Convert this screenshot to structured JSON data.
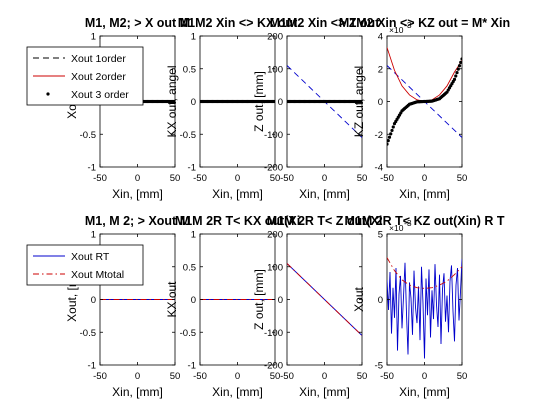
{
  "chart_data": [
    {
      "type": "line",
      "title": "M1, M2;  > X out M",
      "xlabel": "Xin, [mm]",
      "ylabel": "Xout, [",
      "xlim": [
        -50,
        50
      ],
      "ylim": [
        -1,
        1
      ],
      "xticks": [
        -50,
        0,
        50
      ],
      "yticks": [
        -1,
        -0.5,
        0,
        0.5,
        1
      ],
      "ytick_labels": [
        "-1",
        "-0.5",
        "0",
        "0.5",
        "1"
      ],
      "grid": false,
      "legend": {
        "placement": "top-left",
        "entries": [
          "Xout 1order",
          "Xout 2order",
          "Xout 3 order"
        ]
      },
      "series": [
        {
          "name": "Xout 1order",
          "style": "dashed",
          "color": "#000000",
          "x": [
            -50,
            50
          ],
          "y": [
            0,
            0
          ]
        },
        {
          "name": "Xout 2order",
          "style": "solid",
          "color": "#cc0000",
          "x": [
            -50,
            50
          ],
          "y": [
            0,
            0
          ]
        },
        {
          "name": "Xout 3 order",
          "style": "dots",
          "color": "#000000",
          "x": [
            -50,
            50
          ],
          "y": [
            0,
            0
          ]
        }
      ]
    },
    {
      "type": "line",
      "title": "M1M2 Xin <> KX  out",
      "xlabel": "Xin, [mm]",
      "ylabel": "KX out, angel",
      "xlim": [
        -50,
        50
      ],
      "ylim": [
        -1,
        1
      ],
      "xticks": [
        -50,
        0,
        50
      ],
      "yticks": [
        -1,
        -0.5,
        0,
        0.5,
        1
      ],
      "ytick_labels": [
        "-1",
        "-0.5",
        "0",
        "0.5",
        "1"
      ],
      "grid": false,
      "series": [
        {
          "style": "dashed",
          "color": "#000000",
          "x": [
            -50,
            50
          ],
          "y": [
            0,
            0
          ]
        },
        {
          "style": "solid",
          "color": "#cc0000",
          "x": [
            -50,
            50
          ],
          "y": [
            0,
            0
          ]
        },
        {
          "style": "dots",
          "color": "#000000",
          "x": [
            -50,
            50
          ],
          "y": [
            0,
            0
          ]
        }
      ]
    },
    {
      "type": "line",
      "title": "M1M2 Xin <> Z  out",
      "xlabel": "Xin, [mm]",
      "ylabel": "Z out, [mm]",
      "xlim": [
        -50,
        50
      ],
      "ylim": [
        -200,
        200
      ],
      "xticks": [
        -50,
        0,
        50
      ],
      "yticks": [
        -200,
        -100,
        0,
        100,
        200
      ],
      "ytick_labels": [
        "-200",
        "-100",
        "0",
        "100",
        "200"
      ],
      "grid": false,
      "series": [
        {
          "style": "dashed",
          "color": "#0000cc",
          "x": [
            -50,
            50
          ],
          "y": [
            110,
            -110
          ]
        },
        {
          "style": "solid",
          "color": "#cc0000",
          "x": [
            -50,
            50
          ],
          "y": [
            0,
            0
          ]
        },
        {
          "style": "dots",
          "color": "#000000",
          "x": [
            -50,
            50
          ],
          "y": [
            0,
            0
          ]
        }
      ]
    },
    {
      "type": "line",
      "title": "M1M2 Xin <> KZ out = M* Xin",
      "xlabel": "Xin, [mm]",
      "ylabel": "KZ out, angel",
      "xlim": [
        -50,
        50
      ],
      "ylim": [
        -4,
        4
      ],
      "xticks": [
        -50,
        0,
        50
      ],
      "yticks": [
        -4,
        -2,
        0,
        2,
        4
      ],
      "ytick_labels": [
        "-4",
        "-2",
        "0",
        "2",
        "4"
      ],
      "y_multiplier": "×10",
      "y_exponent": "-3",
      "grid": false,
      "series": [
        {
          "style": "dashed",
          "color": "#0000cc",
          "x": [
            -50,
            50
          ],
          "y": [
            2.2,
            -2.2
          ]
        },
        {
          "style": "solid",
          "color": "#cc0000",
          "x": [
            -50,
            -40,
            -30,
            -20,
            -10,
            0,
            10,
            20,
            30,
            40,
            50
          ],
          "y": [
            3.3,
            1.9,
            0.95,
            0.4,
            0.1,
            0.0,
            0.1,
            0.4,
            0.95,
            1.8,
            2.5
          ]
        },
        {
          "style": "dots",
          "color": "#000000",
          "x": [
            -50,
            -40,
            -30,
            -20,
            -10,
            0,
            10,
            20,
            30,
            40,
            50
          ],
          "y": [
            -2.6,
            -1.35,
            -0.57,
            -0.17,
            -0.02,
            0.0,
            0.02,
            0.17,
            0.57,
            1.35,
            2.6
          ]
        }
      ]
    },
    {
      "type": "line",
      "title": "M1, M 2;  > Xout M",
      "xlabel": "Xin, [mm]",
      "ylabel": "Xout, [m",
      "xlim": [
        -50,
        50
      ],
      "ylim": [
        -1,
        1
      ],
      "xticks": [
        -50,
        0,
        50
      ],
      "yticks": [
        -1,
        -0.5,
        0,
        0.5,
        1
      ],
      "ytick_labels": [
        "-1",
        "-0.5",
        "0",
        "0.5",
        "1"
      ],
      "grid": false,
      "legend": {
        "placement": "top-left",
        "entries": [
          "Xout RT",
          "Xout  Mtotal"
        ]
      },
      "series": [
        {
          "name": "Xout RT",
          "style": "solid",
          "color": "#0000cc",
          "x": [
            -50,
            50
          ],
          "y": [
            0,
            0
          ]
        },
        {
          "name": "Xout  Mtotal",
          "style": "dashdot",
          "color": "#cc0000",
          "x": [
            -50,
            50
          ],
          "y": [
            0,
            0
          ]
        }
      ]
    },
    {
      "type": "line",
      "title": "M1M 2R T< KX out(Xi",
      "xlabel": "Xin, [mm]",
      "ylabel": "KX out",
      "xlim": [
        -50,
        50
      ],
      "ylim": [
        -1,
        1
      ],
      "xticks": [
        -50,
        0,
        50
      ],
      "yticks": [
        -1,
        -0.5,
        0,
        0.5,
        1
      ],
      "ytick_labels": [
        "-1",
        "-0.5",
        "0",
        "0.5",
        "1"
      ],
      "grid": false,
      "series": [
        {
          "style": "solid",
          "color": "#0000cc",
          "x": [
            -50,
            50
          ],
          "y": [
            0,
            0
          ]
        },
        {
          "style": "dashdot",
          "color": "#cc0000",
          "x": [
            -50,
            50
          ],
          "y": [
            0,
            0
          ]
        }
      ]
    },
    {
      "type": "line",
      "title": "M1M 2R T< Z out(Xi",
      "xlabel": "Xin, [mm]",
      "ylabel": "Z out, [mm]",
      "xlim": [
        -50,
        50
      ],
      "ylim": [
        -200,
        200
      ],
      "xticks": [
        -50,
        0,
        50
      ],
      "yticks": [
        -200,
        -100,
        0,
        100,
        200
      ],
      "ytick_labels": [
        "-200",
        "-100",
        "0",
        "100",
        "200"
      ],
      "grid": false,
      "series": [
        {
          "style": "solid",
          "color": "#0000cc",
          "x": [
            -50,
            50
          ],
          "y": [
            110,
            -110
          ]
        },
        {
          "style": "dashdot",
          "color": "#cc0000",
          "x": [
            -50,
            50
          ],
          "y": [
            110,
            -110
          ]
        }
      ]
    },
    {
      "type": "line",
      "title": "M1M 2R T< KZ out(Xin)   R T",
      "xlabel": "Xin, [mm]",
      "ylabel": "Xout",
      "xlim": [
        -50,
        50
      ],
      "ylim": [
        -5,
        5
      ],
      "xticks": [
        -50,
        0,
        50
      ],
      "yticks": [
        -5,
        0,
        5
      ],
      "ytick_labels": [
        "-5",
        "0",
        "5"
      ],
      "y_multiplier": "×10",
      "y_exponent": "-3",
      "grid": false,
      "series": [
        {
          "style": "solid",
          "color": "#0000cc",
          "x": [
            -50,
            -48,
            -46,
            -44,
            -42,
            -40,
            -38,
            -36,
            -34,
            -32,
            -30,
            -28,
            -26,
            -24,
            -22,
            -20,
            -18,
            -16,
            -14,
            -12,
            -10,
            -8,
            -6,
            -4,
            -2,
            0,
            2,
            4,
            6,
            8,
            10,
            12,
            14,
            16,
            18,
            20,
            22,
            24,
            26,
            28,
            30,
            32,
            34,
            36,
            38,
            40,
            42,
            44,
            46,
            48,
            50
          ],
          "y": [
            1.5,
            -0.8,
            2.1,
            -2.6,
            0.9,
            -1.4,
            2.4,
            -3.9,
            0.4,
            1.8,
            -2.2,
            0.2,
            2.8,
            -1.1,
            -4.2,
            1.3,
            0.1,
            -2.7,
            2.2,
            -0.6,
            -1.8,
            1.0,
            -3.1,
            2.5,
            -0.3,
            -4.5,
            1.6,
            -1.2,
            2.3,
            -2.9,
            0.7,
            -1.5,
            2.7,
            -0.4,
            -2.1,
            1.9,
            -3.4,
            0.8,
            2.0,
            -1.7,
            0.3,
            -2.5,
            1.4,
            2.6,
            -0.9,
            -3.2,
            1.1,
            2.4,
            -1.6,
            0.6,
            3.1
          ]
        },
        {
          "style": "dashdot",
          "color": "#cc0000",
          "x": [
            -50,
            -40,
            -30,
            -20,
            -10,
            0,
            10,
            20,
            30,
            40,
            50
          ],
          "y": [
            3.2,
            2.2,
            1.5,
            1.1,
            0.9,
            0.85,
            0.9,
            1.1,
            1.4,
            1.9,
            2.5
          ]
        }
      ]
    }
  ]
}
